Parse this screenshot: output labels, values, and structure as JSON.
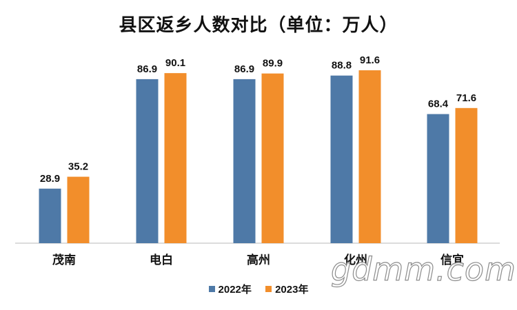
{
  "chart_data": {
    "type": "bar",
    "title": "县区返乡人数对比（单位：万人）",
    "categories": [
      "茂南",
      "电白",
      "高州",
      "化州",
      "信宜"
    ],
    "series": [
      {
        "name": "2022年",
        "values": [
          28.9,
          86.9,
          86.9,
          88.8,
          68.4
        ]
      },
      {
        "name": "2023年",
        "values": [
          35.2,
          90.1,
          89.9,
          91.6,
          71.6
        ]
      }
    ],
    "ylim": [
      0,
      100
    ],
    "grid": false,
    "legend_position": "bottom",
    "colors": [
      "#4e79a7",
      "#f28e2b"
    ]
  },
  "watermark": {
    "text": "gdmm.com"
  }
}
